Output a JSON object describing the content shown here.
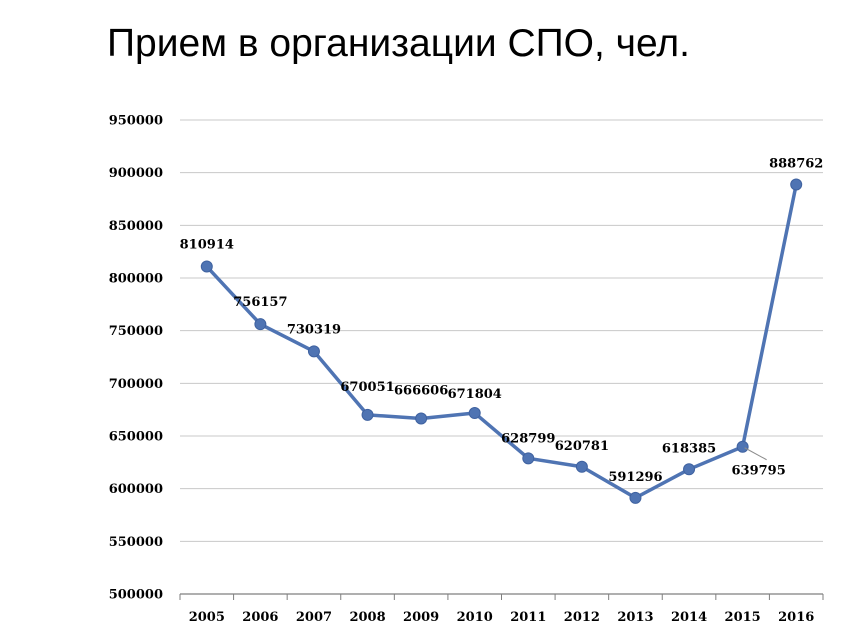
{
  "chart_data": {
    "type": "line",
    "title": "Прием в организации СПО, чел.",
    "xlabel": "",
    "ylabel": "",
    "ylim": [
      500000,
      950000
    ],
    "yticks": [
      500000,
      550000,
      600000,
      650000,
      700000,
      750000,
      800000,
      850000,
      900000,
      950000
    ],
    "grid": true,
    "legend": "none",
    "categories": [
      "2005",
      "2006",
      "2007",
      "2008",
      "2009",
      "2010",
      "2011",
      "2012",
      "2013",
      "2014",
      "2015",
      "2016"
    ],
    "series": [
      {
        "color": "#4f74b3",
        "values": [
          810914,
          756157,
          730319,
          670051,
          666606,
          671804,
          628799,
          620781,
          591296,
          618385,
          639795,
          888762
        ]
      }
    ]
  }
}
